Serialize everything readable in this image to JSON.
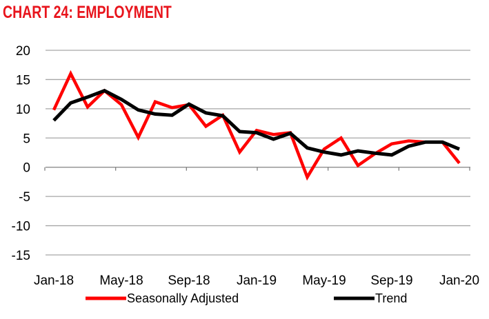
{
  "chart_data": {
    "type": "line",
    "title": "CHART 24: EMPLOYMENT",
    "xlabel": "",
    "ylabel": "",
    "ylim": [
      -15,
      20
    ],
    "yticks": [
      20,
      15,
      10,
      5,
      0,
      -5,
      -10,
      -15
    ],
    "ytick_labels": [
      "20",
      "15",
      "10",
      "5",
      "0",
      "-5",
      "-10",
      "-15"
    ],
    "x": [
      "Jan-18",
      "Feb-18",
      "Mar-18",
      "Apr-18",
      "May-18",
      "Jun-18",
      "Jul-18",
      "Aug-18",
      "Sep-18",
      "Oct-18",
      "Nov-18",
      "Dec-18",
      "Jan-19",
      "Feb-19",
      "Mar-19",
      "Apr-19",
      "May-19",
      "Jun-19",
      "Jul-19",
      "Aug-19",
      "Sep-19",
      "Oct-19",
      "Nov-19",
      "Dec-19",
      "Jan-20"
    ],
    "xtick_labels": [
      "Jan-18",
      "May-18",
      "Sep-18",
      "Jan-19",
      "May-19",
      "Sep-19",
      "Jan-20"
    ],
    "grid": true,
    "legend": "bottom",
    "series": [
      {
        "name": "Seasonally Adjusted",
        "color": "#ff0000",
        "values": [
          9.8,
          16.0,
          10.3,
          13.1,
          10.7,
          5.1,
          11.2,
          10.2,
          10.7,
          7.0,
          8.9,
          2.6,
          6.3,
          5.6,
          5.9,
          -1.7,
          3.1,
          5.0,
          0.3,
          2.3,
          4.0,
          4.5,
          4.3,
          4.3,
          0.7
        ]
      },
      {
        "name": "Trend",
        "color": "#000000",
        "values": [
          8.0,
          11.0,
          12.0,
          13.1,
          11.6,
          9.8,
          9.1,
          8.9,
          10.8,
          9.3,
          8.8,
          6.1,
          5.9,
          4.8,
          5.8,
          3.3,
          2.6,
          2.1,
          2.8,
          2.4,
          2.1,
          3.6,
          4.3,
          4.3,
          3.1
        ]
      }
    ]
  }
}
